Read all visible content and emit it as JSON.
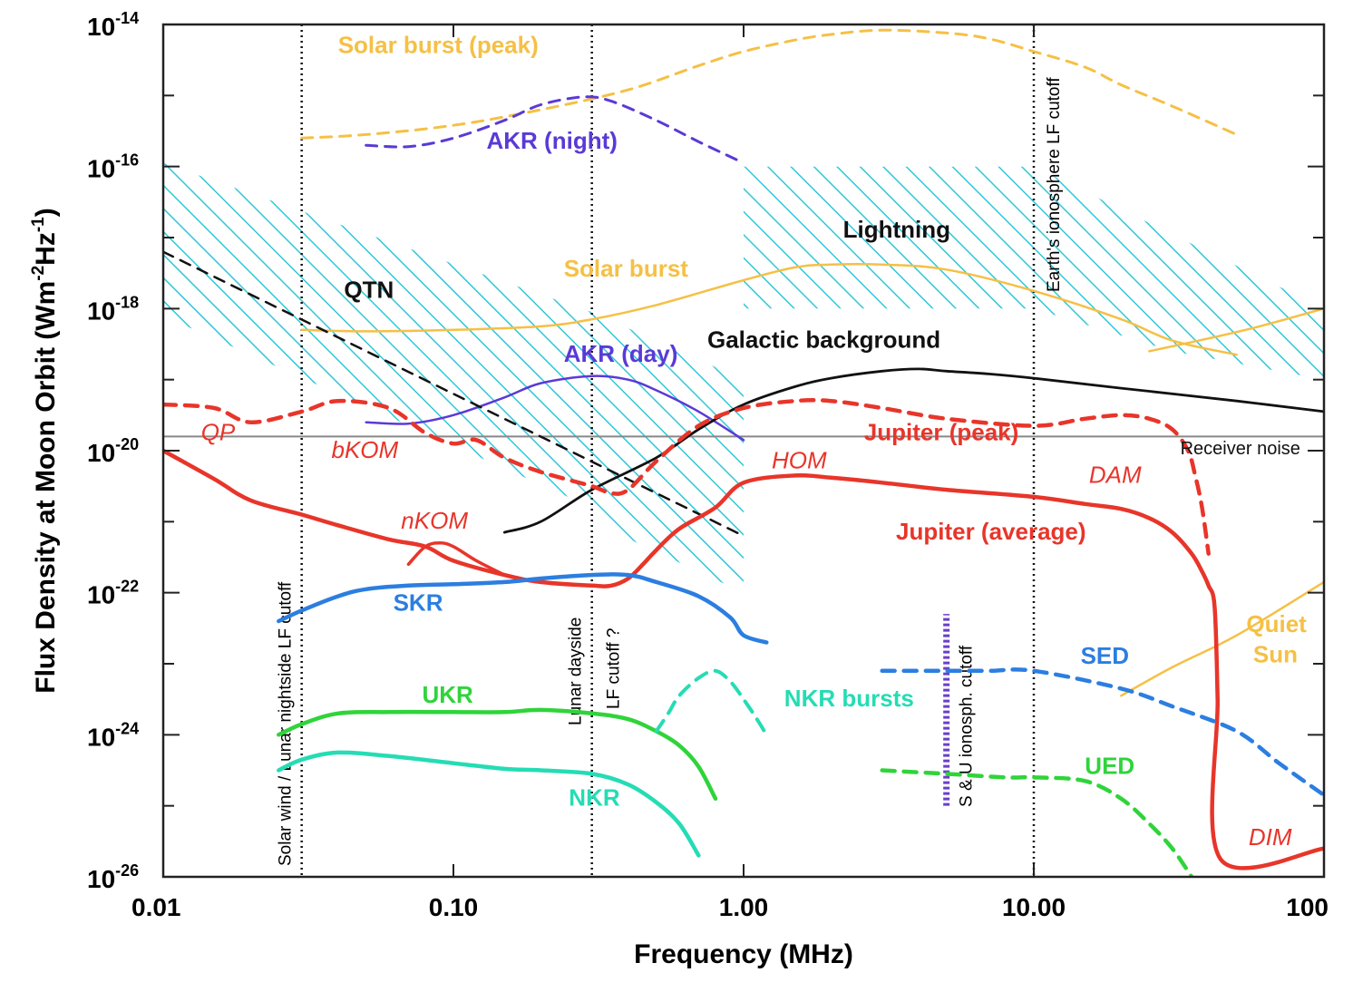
{
  "chart_data": {
    "type": "line",
    "xlabel": "Frequency (MHz)",
    "ylabel_main": "Flux Density at Moon Orbit (Wm",
    "ylabel_sup1": "-2",
    "ylabel_mid": "Hz",
    "ylabel_sup2": "-1",
    "ylabel_end": ")",
    "x_scale": "log",
    "y_scale": "log",
    "xlim": [
      0.01,
      100
    ],
    "ylim": [
      1e-26,
      1e-14
    ],
    "x_ticks": [
      {
        "value": 0.01,
        "label": "0.01"
      },
      {
        "value": 0.1,
        "label": "0.10"
      },
      {
        "value": 1,
        "label": "1.00"
      },
      {
        "value": 10,
        "label": "10.00"
      },
      {
        "value": 100,
        "label": "100"
      }
    ],
    "y_ticks": [
      {
        "value": -26,
        "base": "10",
        "exp": "-26"
      },
      {
        "value": -24,
        "base": "10",
        "exp": "-24"
      },
      {
        "value": -22,
        "base": "10",
        "exp": "-22"
      },
      {
        "value": -20,
        "base": "10",
        "exp": "-20"
      },
      {
        "value": -18,
        "base": "10",
        "exp": "-18"
      },
      {
        "value": -16,
        "base": "10",
        "exp": "-16"
      },
      {
        "value": -14,
        "base": "10",
        "exp": "-14"
      }
    ],
    "vlines": [
      {
        "x": 0.03,
        "label": "Solar wind / Lunar nightside LF cutoff"
      },
      {
        "x": 0.3,
        "label1": "Lunar dayside",
        "label2": "LF cutoff ?"
      },
      {
        "x": 10,
        "label": "Earth's ionosphere LF cutoff"
      }
    ],
    "su_cutoff": {
      "x": 5,
      "y_range": [
        -25.0,
        -22.3
      ],
      "label": "S & U ionosph. cutoff",
      "color": "#6a3fc9"
    },
    "hatched_regions": [
      {
        "name": "QTN",
        "polygon": [
          [
            0.01,
            -15.95
          ],
          [
            0.3,
            -18.05
          ],
          [
            0.3,
            -20.8
          ],
          [
            0.01,
            -18.1
          ]
        ]
      },
      {
        "name": "QTN-lower",
        "polygon": [
          [
            0.3,
            -18.05
          ],
          [
            1.0,
            -19.0
          ],
          [
            1.0,
            -22.0
          ],
          [
            0.3,
            -21.0
          ]
        ]
      },
      {
        "name": "Lightning",
        "polygon": [
          [
            1.0,
            -16.0
          ],
          [
            10.0,
            -16.0
          ],
          [
            100.0,
            -18.0
          ],
          [
            100.0,
            -19.0
          ],
          [
            30,
            -18.6
          ],
          [
            10.0,
            -18.0
          ],
          [
            1.0,
            -18.0
          ]
        ]
      }
    ],
    "hatch_color": "#2ec8d8",
    "receiver_noise": {
      "y": -19.8,
      "label": "Receiver noise",
      "color": "#888888"
    },
    "series": [
      {
        "name": "Solar burst (peak)",
        "color": "#f5c045",
        "dash": true,
        "width": 3,
        "x": [
          0.03,
          0.05,
          0.1,
          0.2,
          0.4,
          0.7,
          1.0,
          1.5,
          2.0,
          3.0,
          5.0,
          7.0,
          10.0,
          15.0,
          20.0,
          30.0,
          50.0
        ],
        "y": [
          -15.6,
          -15.55,
          -15.42,
          -15.2,
          -14.92,
          -14.58,
          -14.38,
          -14.22,
          -14.14,
          -14.08,
          -14.12,
          -14.2,
          -14.38,
          -14.6,
          -14.85,
          -15.15,
          -15.55
        ]
      },
      {
        "name": "AKR (night)",
        "color": "#5a3ad6",
        "dash": true,
        "width": 3,
        "x": [
          0.05,
          0.07,
          0.1,
          0.15,
          0.2,
          0.28,
          0.35,
          0.5,
          0.7,
          1.0
        ],
        "y": [
          -15.7,
          -15.72,
          -15.6,
          -15.35,
          -15.13,
          -15.02,
          -15.08,
          -15.35,
          -15.65,
          -15.95
        ]
      },
      {
        "name": "Solar burst",
        "color": "#f5c045",
        "dash": false,
        "width": 2.5,
        "x": [
          0.03,
          0.05,
          0.1,
          0.2,
          0.3,
          0.5,
          1.0,
          1.5,
          2.0,
          3.0,
          5.0,
          10.0,
          20.0,
          30.0,
          50.0
        ],
        "y": [
          -18.3,
          -18.32,
          -18.3,
          -18.25,
          -18.15,
          -17.95,
          -17.6,
          -17.42,
          -17.38,
          -17.38,
          -17.45,
          -17.75,
          -18.15,
          -18.45,
          -18.65
        ]
      },
      {
        "name": "Quiet Sun high",
        "color": "#f5c045",
        "dash": false,
        "width": 2.5,
        "x": [
          25.0,
          40.0,
          60.0,
          100.0
        ],
        "y": [
          -18.6,
          -18.42,
          -18.25,
          -18.0
        ]
      },
      {
        "name": "Quiet Sun",
        "color": "#f5c045",
        "dash": false,
        "width": 2.5,
        "x": [
          20.0,
          30.0,
          50.0,
          100.0
        ],
        "y": [
          -23.45,
          -23.05,
          -22.6,
          -21.85
        ]
      },
      {
        "name": "AKR (day)",
        "color": "#5a3ad6",
        "dash": false,
        "width": 2.5,
        "x": [
          0.05,
          0.07,
          0.1,
          0.15,
          0.2,
          0.3,
          0.4,
          0.5,
          0.7,
          1.0
        ],
        "y": [
          -19.6,
          -19.62,
          -19.5,
          -19.25,
          -19.05,
          -18.95,
          -19.0,
          -19.15,
          -19.45,
          -19.85
        ]
      },
      {
        "name": "Galactic background",
        "color": "#111111",
        "dash": false,
        "width": 2.8,
        "x": [
          0.15,
          0.2,
          0.3,
          0.5,
          0.7,
          1.0,
          1.5,
          2.0,
          3.0,
          4.0,
          5.0,
          7.0,
          10.0,
          20.0,
          50.0,
          100.0
        ],
        "y": [
          -21.15,
          -21.0,
          -20.55,
          -20.1,
          -19.7,
          -19.35,
          -19.1,
          -18.98,
          -18.88,
          -18.85,
          -18.88,
          -18.92,
          -18.98,
          -19.12,
          -19.3,
          -19.45
        ]
      },
      {
        "name": "QTN line",
        "color": "#111111",
        "dash": true,
        "width": 2.5,
        "x": [
          0.01,
          1.0
        ],
        "y": [
          -17.2,
          -21.2
        ]
      },
      {
        "name": "Jupiter (peak)",
        "color": "#e8352a",
        "dash": true,
        "width": 4.5,
        "x": [
          0.01,
          0.015,
          0.02,
          0.03,
          0.04,
          0.06,
          0.08,
          0.1,
          0.12,
          0.15,
          0.2,
          0.3,
          0.35,
          0.4,
          0.5,
          0.7,
          1.0,
          1.5,
          2.0,
          3.0,
          5.0,
          10.0,
          15.0,
          20.0,
          25.0,
          30.0,
          34.0,
          36.0,
          38.0,
          40.0
        ],
        "y": [
          -19.35,
          -19.4,
          -19.6,
          -19.45,
          -19.3,
          -19.4,
          -19.75,
          -19.9,
          -19.85,
          -20.1,
          -20.3,
          -20.5,
          -20.6,
          -20.55,
          -20.15,
          -19.65,
          -19.4,
          -19.3,
          -19.3,
          -19.4,
          -19.55,
          -19.65,
          -19.55,
          -19.5,
          -19.55,
          -19.7,
          -20.0,
          -20.35,
          -20.8,
          -21.45
        ]
      },
      {
        "name": "Jupiter (average)",
        "color": "#e8352a",
        "dash": false,
        "width": 4.5,
        "x": [
          0.01,
          0.015,
          0.02,
          0.03,
          0.04,
          0.06,
          0.08,
          0.1,
          0.15,
          0.2,
          0.3,
          0.35,
          0.4,
          0.45,
          0.5,
          0.6,
          0.8,
          1.0,
          1.5,
          2.0,
          3.0,
          5.0,
          10.0,
          15.0,
          20.0,
          25.0,
          30.0,
          35.0,
          38.0,
          40.0,
          42.0,
          43.0,
          44.0,
          100.0
        ],
        "y": [
          -20.0,
          -20.4,
          -20.7,
          -20.9,
          -21.05,
          -21.25,
          -21.35,
          -21.55,
          -21.75,
          -21.85,
          -21.9,
          -21.9,
          -21.8,
          -21.6,
          -21.4,
          -21.1,
          -20.8,
          -20.45,
          -20.35,
          -20.38,
          -20.45,
          -20.55,
          -20.65,
          -20.75,
          -20.82,
          -20.95,
          -21.15,
          -21.45,
          -21.7,
          -21.9,
          -22.2,
          -23.5,
          -25.75,
          -25.6
        ]
      },
      {
        "name": "nKOM",
        "color": "#e8352a",
        "dash": false,
        "width": 3.5,
        "x": [
          0.07,
          0.08,
          0.09,
          0.1,
          0.12,
          0.15
        ],
        "y": [
          -21.6,
          -21.35,
          -21.3,
          -21.35,
          -21.55,
          -21.75
        ]
      },
      {
        "name": "SKR",
        "color": "#2c7ee0",
        "dash": false,
        "width": 4.5,
        "x": [
          0.025,
          0.03,
          0.04,
          0.05,
          0.07,
          0.1,
          0.15,
          0.2,
          0.3,
          0.4,
          0.5,
          0.7,
          0.9,
          1.0,
          1.2
        ],
        "y": [
          -22.4,
          -22.25,
          -22.05,
          -21.95,
          -21.9,
          -21.88,
          -21.85,
          -21.8,
          -21.75,
          -21.75,
          -21.85,
          -22.05,
          -22.35,
          -22.6,
          -22.7
        ]
      },
      {
        "name": "UKR",
        "color": "#2fd43a",
        "dash": false,
        "width": 4.5,
        "x": [
          0.025,
          0.03,
          0.04,
          0.06,
          0.1,
          0.15,
          0.2,
          0.3,
          0.4,
          0.5,
          0.6,
          0.7,
          0.8
        ],
        "y": [
          -24.0,
          -23.85,
          -23.7,
          -23.68,
          -23.68,
          -23.68,
          -23.65,
          -23.7,
          -23.78,
          -23.95,
          -24.15,
          -24.45,
          -24.9
        ]
      },
      {
        "name": "NKR",
        "color": "#25dcb4",
        "dash": false,
        "width": 4.5,
        "x": [
          0.025,
          0.03,
          0.04,
          0.06,
          0.1,
          0.15,
          0.2,
          0.3,
          0.4,
          0.5,
          0.6,
          0.7
        ],
        "y": [
          -24.5,
          -24.35,
          -24.25,
          -24.3,
          -24.4,
          -24.48,
          -24.5,
          -24.55,
          -24.7,
          -24.95,
          -25.25,
          -25.7
        ]
      },
      {
        "name": "NKR bursts",
        "color": "#25dcb4",
        "dash": true,
        "width": 4,
        "x": [
          0.5,
          0.55,
          0.6,
          0.7,
          0.8,
          0.9,
          1.0,
          1.1,
          1.2
        ],
        "y": [
          -23.95,
          -23.7,
          -23.45,
          -23.2,
          -23.1,
          -23.25,
          -23.5,
          -23.75,
          -24.0
        ]
      },
      {
        "name": "SED",
        "color": "#2c7ee0",
        "dash": true,
        "width": 4.5,
        "x": [
          3.0,
          5.0,
          7.0,
          10.0,
          20.0,
          30.0,
          50.0,
          70.0,
          100.0
        ],
        "y": [
          -23.1,
          -23.1,
          -23.1,
          -23.1,
          -23.35,
          -23.6,
          -23.95,
          -24.4,
          -24.85
        ]
      },
      {
        "name": "UED",
        "color": "#2fd43a",
        "dash": true,
        "width": 4.5,
        "x": [
          3.0,
          5.0,
          8.0,
          10.0,
          15.0,
          20.0,
          25.0,
          30.0,
          35.0
        ],
        "y": [
          -24.5,
          -24.55,
          -24.6,
          -24.6,
          -24.65,
          -24.9,
          -25.25,
          -25.6,
          -26.0
        ]
      }
    ],
    "labels": [
      {
        "text": "Solar burst (peak)",
        "x": 0.04,
        "y": -14.4,
        "color": "#f5c045",
        "style": "bold"
      },
      {
        "text": "AKR (night)",
        "x": 0.13,
        "y": -15.75,
        "color": "#5a3ad6",
        "style": "bold"
      },
      {
        "text": "Lightning",
        "x": 2.2,
        "y": -17.0,
        "color": "#111111",
        "style": "bold"
      },
      {
        "text": "Solar burst",
        "x": 0.24,
        "y": -17.55,
        "color": "#f5c045",
        "style": "bold"
      },
      {
        "text": "QTN",
        "x": 0.042,
        "y": -17.85,
        "color": "#111111",
        "style": "bold"
      },
      {
        "text": "Galactic background",
        "x": 0.75,
        "y": -18.55,
        "color": "#111111",
        "style": "bold"
      },
      {
        "text": "AKR (day)",
        "x": 0.24,
        "y": -18.75,
        "color": "#5a3ad6",
        "style": "bold"
      },
      {
        "text": "QP",
        "x": 0.0135,
        "y": -19.85,
        "color": "#e8352a",
        "style": "italic"
      },
      {
        "text": "bKOM",
        "x": 0.038,
        "y": -20.1,
        "color": "#e8352a",
        "style": "italic"
      },
      {
        "text": "Jupiter (peak)",
        "x": 2.6,
        "y": -19.85,
        "color": "#e8352a",
        "style": "bold"
      },
      {
        "text": "Receiver noise",
        "x": 32.0,
        "y": -20.05,
        "color": "#111111",
        "style": "small"
      },
      {
        "text": "HOM",
        "x": 1.25,
        "y": -20.25,
        "color": "#e8352a",
        "style": "italic"
      },
      {
        "text": "DAM",
        "x": 15.5,
        "y": -20.45,
        "color": "#e8352a",
        "style": "italic"
      },
      {
        "text": "nKOM",
        "x": 0.066,
        "y": -21.1,
        "color": "#e8352a",
        "style": "italic"
      },
      {
        "text": "Jupiter (average)",
        "x": 3.35,
        "y": -21.25,
        "color": "#e8352a",
        "style": "bold"
      },
      {
        "text": "SKR",
        "x": 0.062,
        "y": -22.25,
        "color": "#2c7ee0",
        "style": "bold"
      },
      {
        "text": "Quiet",
        "x": 54.0,
        "y": -22.55,
        "color": "#f5c045",
        "style": "bold"
      },
      {
        "text": "Sun",
        "x": 57.0,
        "y": -22.98,
        "color": "#f5c045",
        "style": "bold"
      },
      {
        "text": "SED",
        "x": 14.5,
        "y": -23.0,
        "color": "#2c7ee0",
        "style": "bold"
      },
      {
        "text": "UKR",
        "x": 0.078,
        "y": -23.55,
        "color": "#2fd43a",
        "style": "bold"
      },
      {
        "text": "NKR bursts",
        "x": 1.38,
        "y": -23.6,
        "color": "#25dcb4",
        "style": "bold-small"
      },
      {
        "text": "UED",
        "x": 15.0,
        "y": -24.55,
        "color": "#2fd43a",
        "style": "bold"
      },
      {
        "text": "NKR",
        "x": 0.25,
        "y": -25.0,
        "color": "#25dcb4",
        "style": "bold"
      },
      {
        "text": "DIM",
        "x": 55.0,
        "y": -25.55,
        "color": "#e8352a",
        "style": "italic"
      }
    ]
  }
}
